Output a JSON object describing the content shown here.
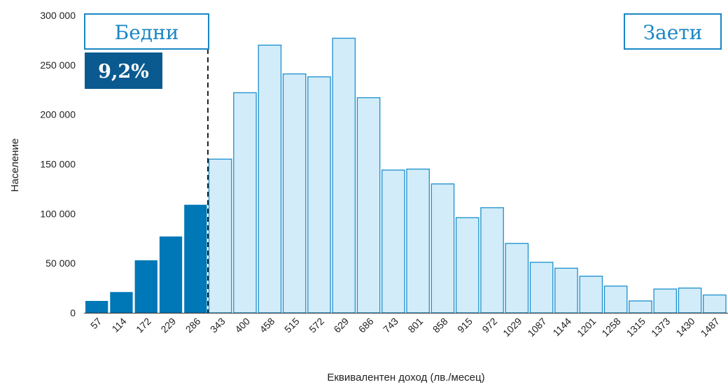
{
  "chart_data": {
    "type": "bar",
    "xlabel": "Еквивалентен доход (лв./месец)",
    "ylabel": "Население",
    "ylim": [
      0,
      300000
    ],
    "y_ticks": [
      0,
      50000,
      100000,
      150000,
      200000,
      250000,
      300000
    ],
    "y_tick_labels": [
      "0",
      "50 000",
      "100 000",
      "150 000",
      "200 000",
      "250 000",
      "300 000"
    ],
    "categories": [
      "57",
      "114",
      "172",
      "229",
      "286",
      "343",
      "400",
      "458",
      "515",
      "572",
      "629",
      "686",
      "743",
      "801",
      "858",
      "915",
      "972",
      "1029",
      "1087",
      "1144",
      "1201",
      "1258",
      "1315",
      "1373",
      "1430",
      "1487"
    ],
    "values": [
      12000,
      21000,
      53000,
      77000,
      109000,
      155000,
      222000,
      270000,
      241000,
      238000,
      277000,
      217000,
      144000,
      145000,
      130000,
      96000,
      106000,
      70000,
      51000,
      45000,
      37000,
      27000,
      12000,
      24000,
      25000,
      18000
    ],
    "poor_bar_count": 5,
    "poverty_line_after_category": "286",
    "colors": {
      "poor_fill": "#0077b6",
      "employed_fill": "#d3ecf9",
      "employed_stroke": "#1a8fcf",
      "label_box_border": "#1a86c4",
      "label_text": "#1a86c4",
      "pct_box_fill": "#0a5a8f"
    },
    "annotations": {
      "poor_label": "Бедни",
      "employed_label": "Заети",
      "poor_share": "9,2%"
    }
  }
}
